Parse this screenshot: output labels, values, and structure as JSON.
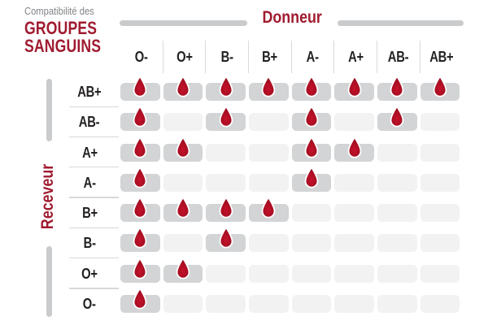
{
  "title": {
    "eyebrow": "Compatibilité des",
    "line1": "GROUPES",
    "line2": "SANGUINS"
  },
  "donor_axis_label": "Donneur",
  "receiver_axis_label": "Receveur",
  "donors": [
    "O-",
    "O+",
    "B-",
    "B+",
    "A-",
    "A+",
    "AB-",
    "AB+"
  ],
  "receivers": [
    "AB+",
    "AB-",
    "A+",
    "A-",
    "B+",
    "B-",
    "O+",
    "O-"
  ],
  "compatibility": {
    "AB+": [
      "O-",
      "O+",
      "B-",
      "B+",
      "A-",
      "A+",
      "AB-",
      "AB+"
    ],
    "AB-": [
      "O-",
      "B-",
      "A-",
      "AB-"
    ],
    "A+": [
      "O-",
      "O+",
      "A-",
      "A+"
    ],
    "A-": [
      "O-",
      "A-"
    ],
    "B+": [
      "O-",
      "O+",
      "B-",
      "B+"
    ],
    "B-": [
      "O-",
      "B-"
    ],
    "O+": [
      "O-",
      "O+"
    ],
    "O-": [
      "O-"
    ]
  },
  "icons": {
    "compatible_marker": "blood-drop-icon"
  },
  "colors": {
    "brand_red": "#a01b30",
    "drop_red": "#a80e22",
    "active_cell_gray": "#d2d4d5",
    "inactive_cell_gray": "#f2f2f3",
    "axis_bar_gray": "#c9cbcc",
    "label_text": "#232021",
    "eyebrow_gray": "#818386"
  },
  "chart_data": {
    "type": "heatmap",
    "title": "Compatibilité des GROUPES SANGUINS",
    "x_axis_label": "Donneur",
    "y_axis_label": "Receveur",
    "x_categories": [
      "O-",
      "O+",
      "B-",
      "B+",
      "A-",
      "A+",
      "AB-",
      "AB+"
    ],
    "y_categories": [
      "AB+",
      "AB-",
      "A+",
      "A-",
      "B+",
      "B-",
      "O+",
      "O-"
    ],
    "values": [
      [
        1,
        1,
        1,
        1,
        1,
        1,
        1,
        1
      ],
      [
        1,
        0,
        1,
        0,
        1,
        0,
        1,
        0
      ],
      [
        1,
        1,
        0,
        0,
        1,
        1,
        0,
        0
      ],
      [
        1,
        0,
        0,
        0,
        1,
        0,
        0,
        0
      ],
      [
        1,
        1,
        1,
        1,
        0,
        0,
        0,
        0
      ],
      [
        1,
        0,
        1,
        0,
        0,
        0,
        0,
        0
      ],
      [
        1,
        1,
        0,
        0,
        0,
        0,
        0,
        0
      ],
      [
        1,
        0,
        0,
        0,
        0,
        0,
        0,
        0
      ]
    ],
    "value_meaning": "1 = compatible (blood drop shown on dark gray cell), 0 = not compatible (empty light gray cell)",
    "legend": "none",
    "grid": "rounded-cell matrix"
  }
}
